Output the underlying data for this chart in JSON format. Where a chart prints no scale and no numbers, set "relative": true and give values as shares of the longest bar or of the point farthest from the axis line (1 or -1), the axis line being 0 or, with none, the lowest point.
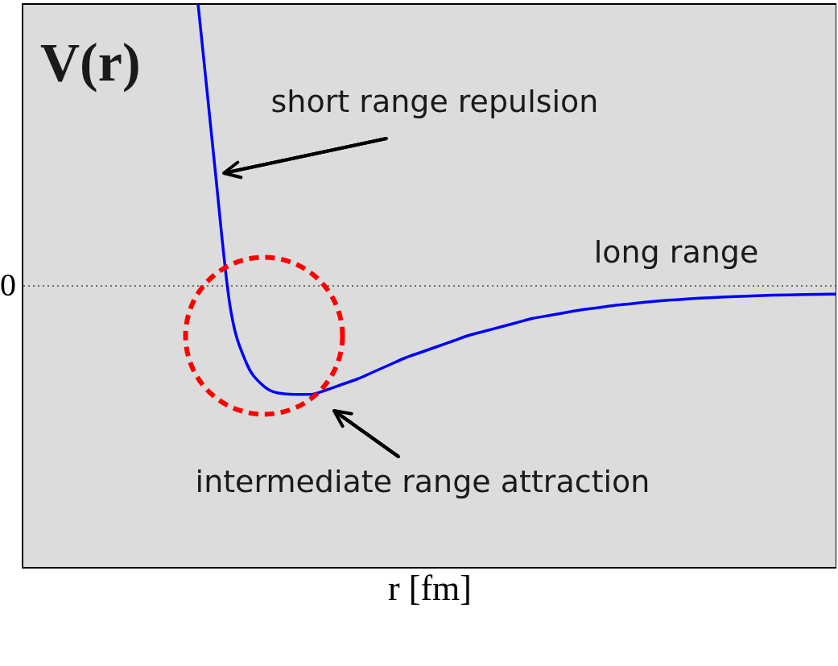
{
  "chart_data": {
    "type": "line",
    "relative": true,
    "xlabel": "r [fm]",
    "categories": [
      null,
      null,
      null,
      null,
      null,
      null,
      null,
      null,
      null,
      null,
      null,
      null,
      null,
      null,
      null,
      null,
      null,
      null,
      null,
      null,
      null,
      null,
      null,
      null,
      null,
      null,
      null,
      null,
      null,
      null,
      null,
      null,
      null,
      null,
      null,
      null,
      null,
      null,
      null,
      null,
      null,
      null,
      null,
      null,
      null,
      null,
      null,
      null,
      null,
      null,
      null,
      null
    ],
    "series": [
      {
        "color": "#0000ff",
        "values": [
          null,
          null,
          null,
          null,
          null,
          null,
          null,
          null,
          null,
          null,
          null,
          1,
          0.45,
          -0.07,
          -0.27,
          -0.35,
          -0.38,
          -0.385,
          -0.385,
          -0.37,
          -0.35,
          -0.33,
          -0.305,
          -0.28,
          -0.255,
          -0.235,
          -0.215,
          -0.195,
          -0.175,
          -0.16,
          -0.145,
          -0.13,
          -0.115,
          -0.105,
          -0.095,
          -0.085,
          -0.078,
          -0.07,
          -0.064,
          -0.058,
          -0.053,
          -0.049,
          -0.045,
          -0.042,
          -0.039,
          -0.037,
          -0.035,
          -0.033,
          -0.032,
          -0.031,
          -0.03,
          -0.029
        ]
      }
    ],
    "ref_lines": [
      {
        "axis": "y",
        "value": 0,
        "label": "0",
        "line_style": "dotted",
        "color": "#000000"
      }
    ],
    "annotations": [
      "V(r)",
      "short range repulsion",
      "long range",
      "intermediate range attraction"
    ],
    "marker": "none",
    "line_style": "solid"
  }
}
